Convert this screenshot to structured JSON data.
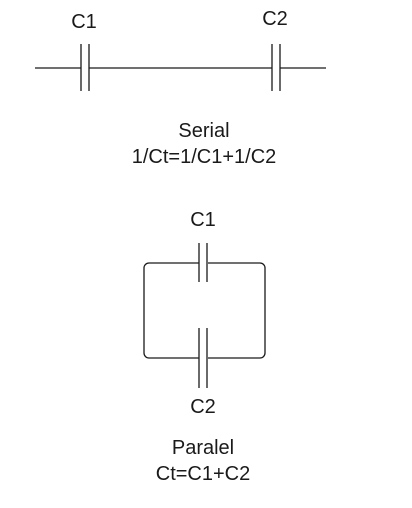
{
  "serial": {
    "cap1_label": "C1",
    "cap2_label": "C2",
    "title": "Serial",
    "formula": "1/Ct=1/C1+1/C2"
  },
  "parallel": {
    "cap1_label": "C1",
    "cap2_label": "C2",
    "title": "Paralel",
    "formula": "Ct=C1+C2"
  },
  "colors": {
    "line": "#1a1a1a",
    "background": "#ffffff"
  }
}
